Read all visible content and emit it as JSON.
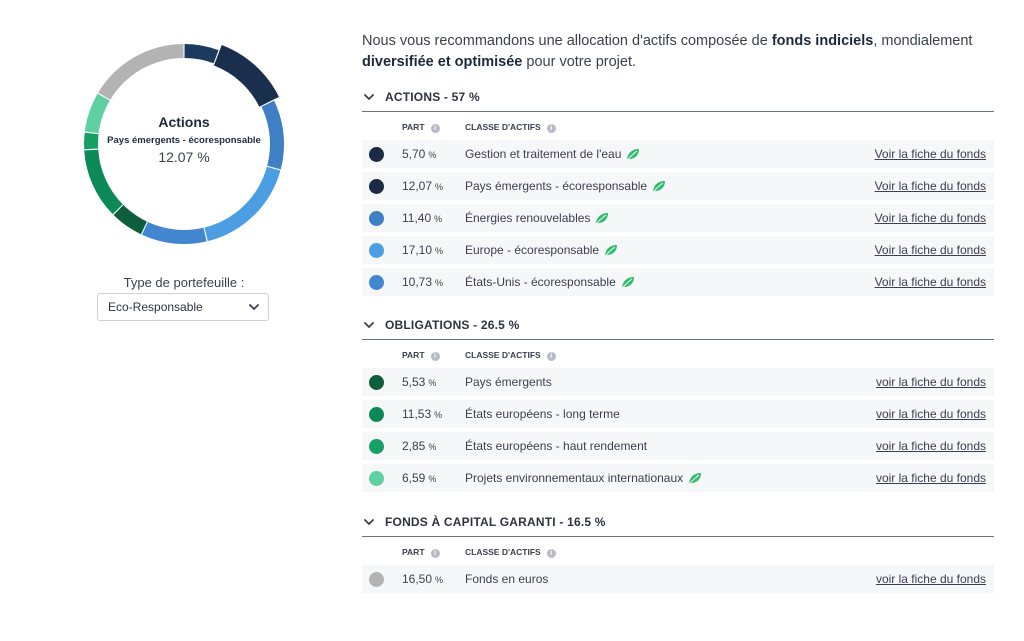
{
  "donut": {
    "title": "Actions",
    "subtitle": "Pays émergents - écoresponsable",
    "value": "12.07 %"
  },
  "portfolio": {
    "label": "Type de portefeuille :",
    "selected": "Eco-Responsable"
  },
  "intro": {
    "p1": "Nous vous recommandons une allocation d'actifs composée de ",
    "b1": "fonds indiciels",
    "p2": ", mondialement ",
    "b2": "diversifiée et optimisée",
    "p3": " pour votre projet."
  },
  "columns": {
    "part": "PART",
    "classe": "CLASSE D'ACTIFS"
  },
  "sections": [
    {
      "title": "ACTIONS  -  57 %",
      "rows": [
        {
          "pct": "5,70",
          "unit": "%",
          "label": "Gestion et traitement de l'eau",
          "eco": true,
          "link": "Voir la fiche du fonds",
          "color": "#1c2a44"
        },
        {
          "pct": "12,07",
          "unit": "%",
          "label": "Pays émergents - écoresponsable",
          "eco": true,
          "link": "Voir la fiche du fonds",
          "color": "#1c2a44"
        },
        {
          "pct": "11,40",
          "unit": "%",
          "label": "Énergies renouvelables",
          "eco": true,
          "link": "Voir la fiche du fonds",
          "color": "#3f7fc4"
        },
        {
          "pct": "17,10",
          "unit": "%",
          "label": "Europe - écoresponsable",
          "eco": true,
          "link": "Voir la fiche du fonds",
          "color": "#4c9ee2"
        },
        {
          "pct": "10,73",
          "unit": "%",
          "label": "États-Unis - écoresponsable",
          "eco": true,
          "link": "Voir la fiche du fonds",
          "color": "#4286d0"
        }
      ]
    },
    {
      "title": "OBLIGATIONS  -  26.5 %",
      "rows": [
        {
          "pct": "5,53",
          "unit": "%",
          "label": "Pays émergents",
          "eco": false,
          "link": "voir la fiche du fonds",
          "color": "#0d5e3c"
        },
        {
          "pct": "11,53",
          "unit": "%",
          "label": "États européens - long terme",
          "eco": false,
          "link": "voir la fiche du fonds",
          "color": "#0b8a58"
        },
        {
          "pct": "2,85",
          "unit": "%",
          "label": "États européens - haut rendement",
          "eco": false,
          "link": "voir la fiche du fonds",
          "color": "#17a064"
        },
        {
          "pct": "6,59",
          "unit": "%",
          "label": "Projets environnementaux internationaux",
          "eco": true,
          "link": "voir la fiche du fonds",
          "color": "#5fd0a2"
        }
      ]
    },
    {
      "title": "FONDS À CAPITAL GARANTI  -  16.5 %",
      "rows": [
        {
          "pct": "16,50",
          "unit": "%",
          "label": "Fonds en euros",
          "eco": false,
          "link": "voir la fiche du fonds",
          "color": "#b3b3b3"
        }
      ]
    }
  ],
  "chart_data": {
    "type": "pie",
    "slices": [
      {
        "label": "Gestion et traitement de l'eau",
        "value": 5.7,
        "color": "#1c3a5e"
      },
      {
        "label": "Pays émergents - écoresponsable",
        "value": 12.07,
        "color": "#1a2f4e"
      },
      {
        "label": "Énergies renouvelables",
        "value": 11.4,
        "color": "#3f7fc4"
      },
      {
        "label": "Europe - écoresponsable",
        "value": 17.1,
        "color": "#4c9ee2"
      },
      {
        "label": "États-Unis - écoresponsable",
        "value": 10.73,
        "color": "#4286d0"
      },
      {
        "label": "Pays émergents",
        "value": 5.53,
        "color": "#0d5e3c"
      },
      {
        "label": "États européens - long terme",
        "value": 11.53,
        "color": "#0b8a58"
      },
      {
        "label": "États européens - haut rendement",
        "value": 2.85,
        "color": "#17a064"
      },
      {
        "label": "Projets environnementaux internationaux",
        "value": 6.59,
        "color": "#5fd0a2"
      },
      {
        "label": "Fonds en euros",
        "value": 16.5,
        "color": "#b3b3b3"
      }
    ],
    "highlighted": "Pays émergents - écoresponsable"
  }
}
